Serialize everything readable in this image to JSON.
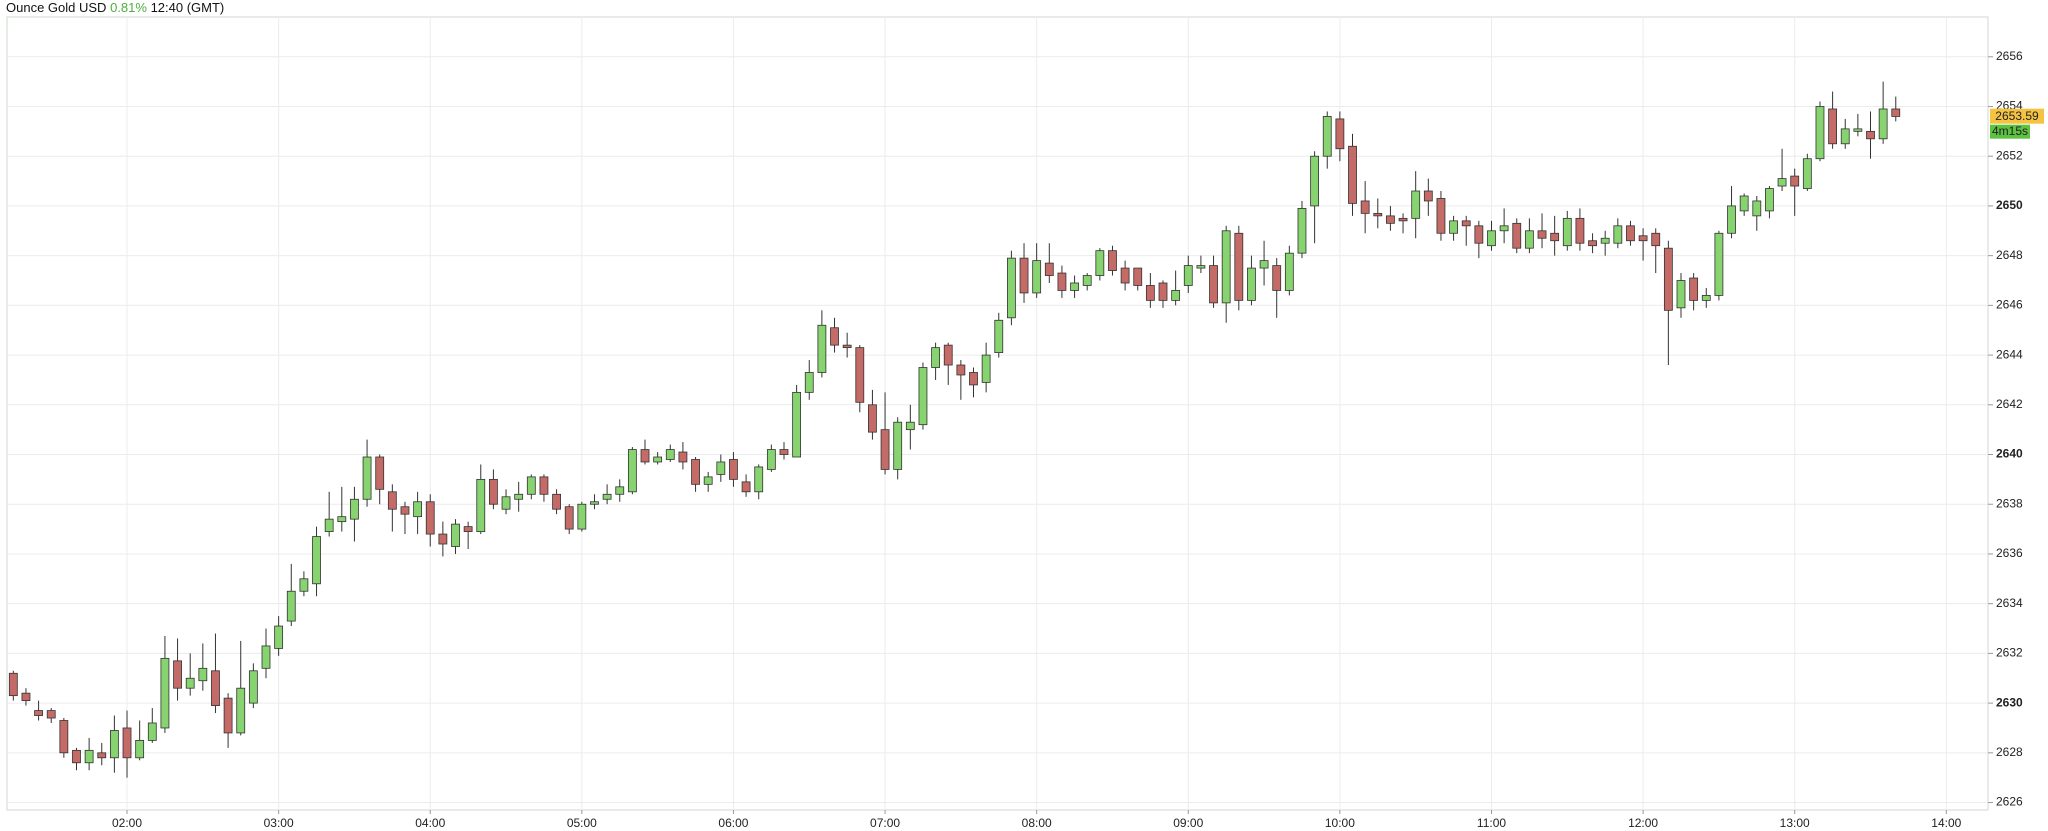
{
  "chart_data": {
    "type": "candlestick",
    "title": "Ounce Gold USD",
    "change": "0.81%",
    "time_label": "12:40 (GMT)",
    "x": [
      75,
      80,
      85,
      90,
      95,
      100,
      105,
      110,
      115,
      120,
      125,
      130,
      135,
      140,
      145,
      150,
      155,
      160,
      165,
      170,
      175,
      180,
      185,
      190,
      195,
      200,
      205,
      210,
      215,
      220,
      225,
      230,
      235,
      240,
      245,
      250,
      255,
      260,
      265,
      270,
      275,
      280,
      285,
      290,
      295,
      300,
      305,
      310,
      315,
      320,
      325,
      330,
      335,
      340,
      345,
      350,
      355,
      360,
      365,
      370,
      375,
      380,
      385,
      390,
      395,
      400,
      405,
      410,
      415,
      420,
      425,
      430,
      435,
      440,
      445,
      450,
      455,
      460,
      465,
      470,
      475,
      480,
      485,
      490,
      495,
      500,
      505,
      510,
      515,
      520,
      525,
      530,
      535,
      540,
      545,
      550,
      555,
      560,
      565,
      570,
      575,
      580,
      585,
      590,
      595,
      600,
      605,
      610,
      615,
      620,
      625,
      630,
      635,
      640,
      645,
      650,
      655,
      660,
      665,
      670,
      675,
      680,
      685,
      690,
      695,
      700,
      705,
      710,
      715,
      720,
      725,
      730,
      735,
      740,
      745,
      750,
      755,
      760,
      765,
      770,
      775,
      780,
      785,
      790,
      795,
      800,
      805,
      810,
      815,
      820
    ],
    "open": [
      2631.2,
      2630.4,
      2629.7,
      2629.7,
      2629.3,
      2628.1,
      2627.6,
      2628.0,
      2627.8,
      2629.0,
      2627.8,
      2628.5,
      2629.0,
      2631.7,
      2630.6,
      2630.9,
      2631.3,
      2630.2,
      2628.8,
      2630.0,
      2631.4,
      2632.2,
      2633.3,
      2634.5,
      2634.8,
      2636.9,
      2637.3,
      2637.4,
      2638.2,
      2639.9,
      2638.5,
      2637.9,
      2637.5,
      2638.1,
      2636.8,
      2636.3,
      2637.1,
      2636.9,
      2639.0,
      2637.8,
      2638.2,
      2638.4,
      2639.1,
      2638.4,
      2637.9,
      2637.0,
      2638.0,
      2638.2,
      2638.4,
      2638.5,
      2640.2,
      2639.7,
      2639.8,
      2640.1,
      2639.8,
      2638.8,
      2639.2,
      2639.8,
      2638.9,
      2638.5,
      2639.4,
      2640.2,
      2639.9,
      2642.5,
      2643.3,
      2645.1,
      2644.4,
      2644.3,
      2642.0,
      2641.0,
      2639.4,
      2641.0,
      2641.2,
      2643.5,
      2644.4,
      2643.6,
      2643.3,
      2642.9,
      2644.1,
      2645.5,
      2647.9,
      2646.5,
      2647.7,
      2647.3,
      2646.6,
      2646.8,
      2647.2,
      2648.2,
      2647.5,
      2647.5,
      2646.8,
      2646.9,
      2646.2,
      2646.8,
      2647.5,
      2647.6,
      2646.1,
      2648.9,
      2646.2,
      2647.5,
      2647.6,
      2646.6,
      2648.1,
      2650.0,
      2652.0,
      2653.5,
      2652.4,
      2650.2,
      2649.7,
      2649.6,
      2649.5,
      2649.5,
      2650.6,
      2650.3,
      2648.9,
      2649.4,
      2649.2,
      2648.4,
      2649.0,
      2649.3,
      2648.3,
      2649.0,
      2648.9,
      2648.4,
      2649.5,
      2648.6,
      2648.5,
      2648.5,
      2649.2,
      2648.8,
      2648.9,
      2648.3,
      2645.9,
      2647.1,
      2646.2,
      2646.4,
      2648.9,
      2649.8,
      2649.6,
      2649.8,
      2650.8,
      2651.2,
      2650.7,
      2651.9,
      2653.9,
      2652.5,
      2653.0,
      2653.0,
      2652.7,
      2653.9
    ],
    "high": [
      2631.3,
      2630.6,
      2630.1,
      2629.8,
      2629.4,
      2628.2,
      2628.6,
      2628.4,
      2629.5,
      2629.7,
      2629.3,
      2629.8,
      2632.7,
      2632.6,
      2632.0,
      2632.4,
      2632.8,
      2630.4,
      2632.5,
      2631.6,
      2633.0,
      2633.5,
      2635.6,
      2635.3,
      2637.1,
      2638.5,
      2638.7,
      2638.7,
      2640.6,
      2640.0,
      2638.8,
      2638.1,
      2638.5,
      2638.4,
      2637.3,
      2637.4,
      2637.3,
      2639.6,
      2639.4,
      2638.6,
      2638.9,
      2639.2,
      2639.2,
      2638.6,
      2638.0,
      2638.1,
      2638.4,
      2638.8,
      2639.0,
      2640.3,
      2640.6,
      2640.1,
      2640.4,
      2640.5,
      2639.9,
      2639.3,
      2640.0,
      2640.1,
      2639.2,
      2639.6,
      2640.4,
      2640.5,
      2642.8,
      2643.8,
      2645.8,
      2645.5,
      2644.9,
      2644.4,
      2642.6,
      2642.5,
      2641.5,
      2642.0,
      2643.7,
      2644.5,
      2644.5,
      2643.8,
      2643.5,
      2644.5,
      2645.7,
      2648.2,
      2648.5,
      2648.5,
      2648.5,
      2647.6,
      2647.2,
      2647.3,
      2648.3,
      2648.4,
      2647.8,
      2647.5,
      2647.3,
      2647.0,
      2647.4,
      2648.0,
      2648.0,
      2648.0,
      2649.2,
      2649.2,
      2648.0,
      2648.6,
      2647.9,
      2648.4,
      2650.2,
      2652.2,
      2653.8,
      2653.8,
      2652.9,
      2651.0,
      2650.3,
      2650.0,
      2649.7,
      2651.4,
      2651.1,
      2650.6,
      2649.6,
      2649.6,
      2649.4,
      2649.4,
      2649.9,
      2649.5,
      2649.5,
      2649.7,
      2649.6,
      2649.8,
      2649.9,
      2648.9,
      2649.0,
      2649.5,
      2649.4,
      2649.1,
      2649.1,
      2648.6,
      2647.3,
      2647.3,
      2646.7,
      2649.0,
      2650.8,
      2650.5,
      2650.4,
      2650.8,
      2652.3,
      2651.5,
      2652.1,
      2654.2,
      2654.6,
      2653.5,
      2653.7,
      2653.8,
      2655.0,
      2654.4
    ],
    "low": [
      2630.1,
      2629.9,
      2629.3,
      2629.2,
      2627.8,
      2627.3,
      2627.3,
      2627.5,
      2627.2,
      2627.0,
      2627.7,
      2628.4,
      2628.8,
      2630.1,
      2630.3,
      2630.5,
      2629.6,
      2628.2,
      2628.7,
      2629.8,
      2631.0,
      2631.9,
      2633.1,
      2634.3,
      2634.3,
      2636.7,
      2636.9,
      2636.5,
      2637.9,
      2638.0,
      2636.9,
      2636.8,
      2636.8,
      2636.3,
      2635.9,
      2636.0,
      2636.2,
      2636.8,
      2637.8,
      2637.6,
      2637.7,
      2638.2,
      2638.1,
      2637.6,
      2636.8,
      2636.9,
      2637.8,
      2638.0,
      2638.1,
      2638.4,
      2639.6,
      2639.6,
      2639.7,
      2639.4,
      2638.5,
      2638.5,
      2638.9,
      2638.7,
      2638.3,
      2638.2,
      2639.3,
      2639.8,
      2639.9,
      2642.2,
      2643.1,
      2644.1,
      2643.9,
      2641.7,
      2640.6,
      2639.2,
      2639.0,
      2640.2,
      2641.0,
      2643.0,
      2642.8,
      2642.2,
      2642.3,
      2642.5,
      2643.9,
      2645.2,
      2646.1,
      2646.3,
      2646.9,
      2646.3,
      2646.3,
      2646.6,
      2647.0,
      2647.2,
      2646.6,
      2646.6,
      2645.9,
      2645.9,
      2646.0,
      2646.5,
      2647.3,
      2645.9,
      2645.3,
      2645.8,
      2646.0,
      2646.8,
      2645.5,
      2646.4,
      2647.9,
      2648.5,
      2651.5,
      2651.8,
      2649.6,
      2648.9,
      2649.1,
      2649.0,
      2648.9,
      2648.7,
      2649.6,
      2648.6,
      2648.6,
      2648.4,
      2647.9,
      2648.2,
      2648.5,
      2648.1,
      2648.1,
      2648.3,
      2648.0,
      2648.2,
      2648.2,
      2648.1,
      2648.0,
      2648.3,
      2648.4,
      2647.8,
      2647.3,
      2643.6,
      2645.5,
      2645.8,
      2645.9,
      2646.2,
      2648.7,
      2649.6,
      2649.0,
      2649.5,
      2650.6,
      2649.6,
      2650.6,
      2651.8,
      2652.3,
      2652.3,
      2652.8,
      2651.9,
      2652.5,
      2653.4
    ],
    "close": [
      2630.3,
      2630.1,
      2629.5,
      2629.4,
      2628.0,
      2627.6,
      2628.1,
      2627.8,
      2628.9,
      2627.8,
      2628.5,
      2629.2,
      2631.8,
      2630.6,
      2631.0,
      2631.4,
      2629.9,
      2628.8,
      2630.6,
      2631.3,
      2632.3,
      2633.1,
      2634.5,
      2635.0,
      2636.7,
      2637.4,
      2637.5,
      2638.2,
      2639.9,
      2638.6,
      2637.8,
      2637.6,
      2638.1,
      2636.8,
      2636.4,
      2637.2,
      2636.9,
      2639.0,
      2638.0,
      2638.3,
      2638.4,
      2639.1,
      2638.4,
      2637.8,
      2637.0,
      2638.0,
      2638.1,
      2638.4,
      2638.7,
      2640.2,
      2639.7,
      2639.9,
      2640.2,
      2639.7,
      2638.8,
      2639.1,
      2639.7,
      2639.0,
      2638.5,
      2639.5,
      2640.2,
      2640.0,
      2642.5,
      2643.3,
      2645.2,
      2644.4,
      2644.3,
      2642.1,
      2640.9,
      2639.4,
      2641.3,
      2641.3,
      2643.5,
      2644.3,
      2643.6,
      2643.2,
      2642.8,
      2644.0,
      2645.4,
      2647.9,
      2646.5,
      2647.8,
      2647.2,
      2646.6,
      2646.9,
      2647.2,
      2648.2,
      2647.4,
      2646.9,
      2646.8,
      2646.2,
      2646.2,
      2646.6,
      2647.6,
      2647.6,
      2646.1,
      2649.0,
      2646.2,
      2647.5,
      2647.8,
      2646.6,
      2648.1,
      2649.9,
      2652.0,
      2653.6,
      2652.3,
      2650.1,
      2649.7,
      2649.6,
      2649.3,
      2649.4,
      2650.6,
      2650.2,
      2648.9,
      2649.4,
      2649.2,
      2648.5,
      2649.0,
      2649.2,
      2648.3,
      2649.0,
      2648.7,
      2648.6,
      2649.5,
      2648.5,
      2648.4,
      2648.7,
      2649.2,
      2648.6,
      2648.6,
      2648.4,
      2645.8,
      2647.0,
      2646.2,
      2646.4,
      2648.9,
      2650.0,
      2650.4,
      2650.2,
      2650.7,
      2651.1,
      2650.8,
      2651.9,
      2654.0,
      2652.5,
      2653.1,
      2653.1,
      2652.7,
      2653.9,
      2653.6
    ],
    "up_color": "#86d36f",
    "down_color": "#c46a67",
    "xlim": [
      72.5,
      856.5
    ],
    "xticks": [
      {
        "value": 120,
        "label": "02:00"
      },
      {
        "value": 180,
        "label": "03:00"
      },
      {
        "value": 240,
        "label": "04:00"
      },
      {
        "value": 300,
        "label": "05:00"
      },
      {
        "value": 360,
        "label": "06:00"
      },
      {
        "value": 420,
        "label": "07:00"
      },
      {
        "value": 480,
        "label": "08:00"
      },
      {
        "value": 540,
        "label": "09:00"
      },
      {
        "value": 600,
        "label": "10:00"
      },
      {
        "value": 660,
        "label": "11:00"
      },
      {
        "value": 720,
        "label": "12:00"
      },
      {
        "value": 780,
        "label": "13:00"
      },
      {
        "value": 840,
        "label": "14:00"
      }
    ],
    "ylim": [
      2625.7,
      2657.6
    ],
    "yticks": [
      2626,
      2628,
      2630,
      2632,
      2634,
      2636,
      2638,
      2640,
      2642,
      2644,
      2646,
      2648,
      2650,
      2652,
      2654,
      2656
    ],
    "grid": true,
    "last_price": 2653.59,
    "last_price_color": "#f5c342",
    "countdown": "4m15s",
    "countdown_color": "#5cc23f"
  }
}
